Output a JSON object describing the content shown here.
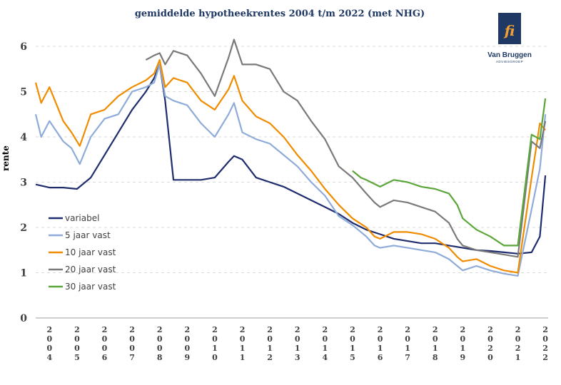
{
  "chart_data": {
    "type": "line",
    "title": "gemiddelde hypotheekrentes 2004 t/m 2022 (met NHG)",
    "xlabel": "",
    "ylabel": "rente",
    "ylim": [
      0,
      6
    ],
    "xlim": [
      2004,
      2022.6
    ],
    "yticks": [
      0,
      1,
      2,
      3,
      4,
      5,
      6
    ],
    "xticks": [
      "2004",
      "2005",
      "2006",
      "2007",
      "2008",
      "2009",
      "2010",
      "2011",
      "2012",
      "2013",
      "2014",
      "2015",
      "2016",
      "2017",
      "2018",
      "2019",
      "2020",
      "2021",
      "2022"
    ],
    "legend_position": "left",
    "grid": "horizontal",
    "series": [
      {
        "name": "variabel",
        "color": "#1f2d6e",
        "x": [
          2004.0,
          2004.5,
          2005.0,
          2005.5,
          2006.0,
          2006.5,
          2007.0,
          2007.5,
          2008.0,
          2008.3,
          2008.5,
          2008.7,
          2009.0,
          2009.5,
          2010.0,
          2010.5,
          2011.0,
          2011.2,
          2011.5,
          2012.0,
          2012.5,
          2013.0,
          2013.5,
          2014.0,
          2014.5,
          2015.0,
          2015.5,
          2016.0,
          2016.5,
          2017.0,
          2017.5,
          2018.0,
          2018.5,
          2019.0,
          2019.5,
          2020.0,
          2020.5,
          2021.0,
          2021.5,
          2022.0,
          2022.3,
          2022.5
        ],
        "y": [
          2.95,
          2.88,
          2.88,
          2.85,
          3.1,
          3.6,
          4.1,
          4.6,
          5.0,
          5.3,
          5.6,
          4.8,
          3.05,
          3.05,
          3.05,
          3.1,
          3.45,
          3.58,
          3.5,
          3.1,
          3.0,
          2.9,
          2.75,
          2.6,
          2.45,
          2.3,
          2.1,
          1.95,
          1.85,
          1.75,
          1.7,
          1.65,
          1.65,
          1.6,
          1.55,
          1.5,
          1.48,
          1.45,
          1.42,
          1.45,
          1.8,
          3.15
        ]
      },
      {
        "name": "5 jaar vast",
        "color": "#8eabd9",
        "x": [
          2004.0,
          2004.2,
          2004.5,
          2005.0,
          2005.3,
          2005.6,
          2006.0,
          2006.5,
          2007.0,
          2007.5,
          2008.0,
          2008.3,
          2008.5,
          2008.7,
          2009.0,
          2009.5,
          2010.0,
          2010.5,
          2011.0,
          2011.2,
          2011.5,
          2012.0,
          2012.5,
          2013.0,
          2013.5,
          2014.0,
          2014.5,
          2015.0,
          2015.5,
          2016.0,
          2016.3,
          2016.5,
          2017.0,
          2017.5,
          2018.0,
          2018.5,
          2019.0,
          2019.3,
          2019.5,
          2020.0,
          2020.5,
          2021.0,
          2021.5,
          2022.0,
          2022.3,
          2022.5
        ],
        "y": [
          4.5,
          4.0,
          4.35,
          3.9,
          3.75,
          3.4,
          4.0,
          4.4,
          4.5,
          5.0,
          5.1,
          5.2,
          5.6,
          4.9,
          4.8,
          4.7,
          4.3,
          4.0,
          4.5,
          4.75,
          4.1,
          3.95,
          3.85,
          3.6,
          3.35,
          3.0,
          2.7,
          2.25,
          2.05,
          1.8,
          1.6,
          1.55,
          1.6,
          1.55,
          1.5,
          1.45,
          1.3,
          1.15,
          1.05,
          1.15,
          1.05,
          0.98,
          0.93,
          2.4,
          3.3,
          4.5
        ]
      },
      {
        "name": "10 jaar vast",
        "color": "#f08c00",
        "x": [
          2004.0,
          2004.2,
          2004.5,
          2005.0,
          2005.3,
          2005.6,
          2006.0,
          2006.5,
          2007.0,
          2007.5,
          2008.0,
          2008.3,
          2008.5,
          2008.7,
          2009.0,
          2009.5,
          2010.0,
          2010.5,
          2011.0,
          2011.2,
          2011.5,
          2012.0,
          2012.5,
          2013.0,
          2013.5,
          2014.0,
          2014.5,
          2015.0,
          2015.5,
          2016.0,
          2016.3,
          2016.5,
          2017.0,
          2017.5,
          2018.0,
          2018.5,
          2019.0,
          2019.3,
          2019.5,
          2020.0,
          2020.5,
          2021.0,
          2021.5,
          2022.0,
          2022.3,
          2022.5
        ],
        "y": [
          5.2,
          4.75,
          5.1,
          4.35,
          4.1,
          3.8,
          4.5,
          4.6,
          4.9,
          5.1,
          5.25,
          5.4,
          5.7,
          5.1,
          5.3,
          5.2,
          4.8,
          4.6,
          5.05,
          5.35,
          4.8,
          4.45,
          4.3,
          4.0,
          3.6,
          3.25,
          2.85,
          2.5,
          2.2,
          2.0,
          1.8,
          1.75,
          1.9,
          1.9,
          1.85,
          1.75,
          1.55,
          1.35,
          1.25,
          1.3,
          1.15,
          1.05,
          1.0,
          3.1,
          4.3,
          4.15
        ]
      },
      {
        "name": "20 jaar vast",
        "color": "#7a7a7a",
        "x": [
          2008.0,
          2008.3,
          2008.5,
          2008.7,
          2009.0,
          2009.5,
          2010.0,
          2010.5,
          2011.0,
          2011.2,
          2011.5,
          2012.0,
          2012.5,
          2013.0,
          2013.5,
          2014.0,
          2014.5,
          2015.0,
          2015.5,
          2016.0,
          2016.3,
          2016.5,
          2017.0,
          2017.5,
          2018.0,
          2018.5,
          2019.0,
          2019.3,
          2019.5,
          2020.0,
          2020.5,
          2021.0,
          2021.5,
          2022.0,
          2022.3,
          2022.5
        ],
        "y": [
          5.7,
          5.8,
          5.85,
          5.6,
          5.9,
          5.8,
          5.4,
          4.9,
          5.75,
          6.15,
          5.6,
          5.6,
          5.5,
          5.0,
          4.8,
          4.35,
          3.95,
          3.35,
          3.1,
          2.75,
          2.55,
          2.45,
          2.6,
          2.55,
          2.45,
          2.35,
          2.1,
          1.75,
          1.6,
          1.5,
          1.45,
          1.4,
          1.35,
          3.9,
          3.75,
          4.35
        ]
      },
      {
        "name": "30 jaar vast",
        "color": "#5aa63a",
        "x": [
          2015.5,
          2015.8,
          2016.0,
          2016.5,
          2017.0,
          2017.5,
          2018.0,
          2018.5,
          2019.0,
          2019.3,
          2019.5,
          2020.0,
          2020.5,
          2021.0,
          2021.5,
          2022.0,
          2022.3,
          2022.5
        ],
        "y": [
          3.25,
          3.1,
          3.05,
          2.9,
          3.05,
          3.0,
          2.9,
          2.85,
          2.75,
          2.5,
          2.2,
          1.95,
          1.8,
          1.6,
          1.6,
          4.05,
          3.95,
          4.85
        ]
      }
    ]
  },
  "logo": {
    "name": "Van Bruggen",
    "sub": "ADVIESGROEP",
    "mono": "fi"
  }
}
